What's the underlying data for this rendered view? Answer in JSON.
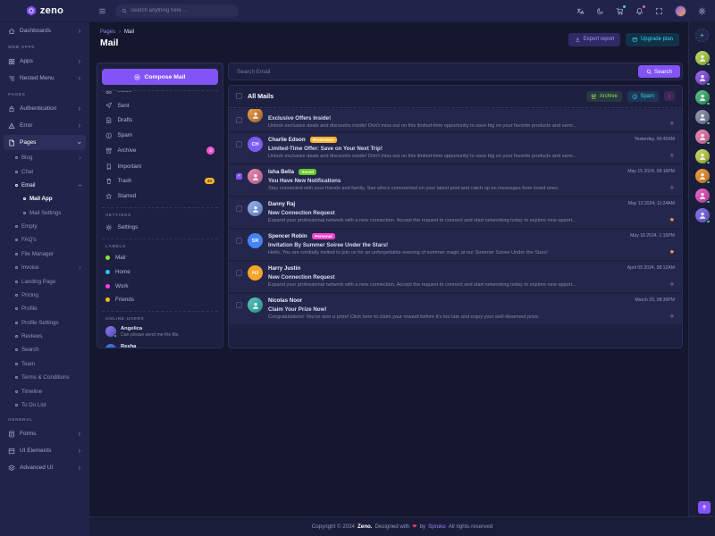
{
  "app": {
    "logo_text": "zeno"
  },
  "header": {
    "search_placeholder": "Search anything here ...",
    "icons": [
      {
        "name": "translate",
        "icon": "translate"
      },
      {
        "name": "dark-mode",
        "icon": "theme"
      },
      {
        "name": "cart",
        "icon": "cart",
        "dot": "#38d4f0"
      },
      {
        "name": "notifications",
        "icon": "bell",
        "dot": "#f354d5"
      },
      {
        "name": "fullscreen",
        "icon": "fullscreen"
      },
      {
        "name": "profile-avatar",
        "avatar": true
      },
      {
        "name": "switcher",
        "icon": "gear"
      }
    ]
  },
  "breadcrumb": {
    "section": "Pages",
    "separator": "›",
    "current": "Mail"
  },
  "page": {
    "title": "Mail",
    "export_label": "Export report",
    "upgrade_label": "Upgrade plan"
  },
  "sidebar": {
    "items": [
      {
        "t": "item",
        "label": "Dashboards",
        "icon": "home",
        "arrow": "right"
      },
      {
        "t": "sec",
        "label": "WEB APPS"
      },
      {
        "t": "item",
        "label": "Apps",
        "icon": "apps",
        "arrow": "right"
      },
      {
        "t": "item",
        "label": "Nested Menu",
        "icon": "nested",
        "arrow": "right"
      },
      {
        "t": "sec",
        "label": "PAGES"
      },
      {
        "t": "item",
        "label": "Authentication",
        "icon": "lock",
        "arrow": "right"
      },
      {
        "t": "item",
        "label": "Error",
        "icon": "warn",
        "arrow": "right"
      },
      {
        "t": "item",
        "label": "Pages",
        "icon": "pages",
        "arrow": "down",
        "active": true
      },
      {
        "t": "sub",
        "label": "Blog",
        "arrow": "right"
      },
      {
        "t": "sub",
        "label": "Chat"
      },
      {
        "t": "sub",
        "label": "Email",
        "arrow": "down",
        "open": true
      },
      {
        "t": "sub2",
        "label": "Mail App",
        "active": true
      },
      {
        "t": "sub2",
        "label": "Mail Settings"
      },
      {
        "t": "sub",
        "label": "Empty"
      },
      {
        "t": "sub",
        "label": "FAQ's"
      },
      {
        "t": "sub",
        "label": "File Manager"
      },
      {
        "t": "sub",
        "label": "Invoice",
        "arrow": "right"
      },
      {
        "t": "sub",
        "label": "Landing Page"
      },
      {
        "t": "sub",
        "label": "Pricing"
      },
      {
        "t": "sub",
        "label": "Profile"
      },
      {
        "t": "sub",
        "label": "Profile Settings"
      },
      {
        "t": "sub",
        "label": "Reviews"
      },
      {
        "t": "sub",
        "label": "Search"
      },
      {
        "t": "sub",
        "label": "Team"
      },
      {
        "t": "sub",
        "label": "Terms & Conditions"
      },
      {
        "t": "sub",
        "label": "Timeline"
      },
      {
        "t": "sub",
        "label": "To Do List"
      },
      {
        "t": "sec",
        "label": "GENERAL"
      },
      {
        "t": "item",
        "label": "Forms",
        "icon": "forms",
        "arrow": "right"
      },
      {
        "t": "item",
        "label": "UI Elements",
        "icon": "ui",
        "arrow": "right"
      },
      {
        "t": "item",
        "label": "Advanced UI",
        "icon": "advui",
        "arrow": "right"
      }
    ]
  },
  "mailnav": {
    "compose_label": "Compose Mail",
    "folders": [
      {
        "label": "Inbox",
        "icon": "inbox",
        "clipped": true
      },
      {
        "label": "Sent",
        "icon": "send"
      },
      {
        "label": "Drafts",
        "icon": "draft"
      },
      {
        "label": "Spam",
        "icon": "info"
      },
      {
        "label": "Archive",
        "icon": "archive",
        "badge": {
          "text": "3",
          "style": "pink"
        }
      },
      {
        "label": "Important",
        "icon": "bookmark"
      },
      {
        "label": "Trash",
        "icon": "trash",
        "badge": {
          "text": "43",
          "style": "orange"
        }
      },
      {
        "label": "Starred",
        "icon": "star"
      }
    ],
    "settings_header": "SETTINGS",
    "settings": [
      {
        "label": "Settings",
        "icon": "gear"
      }
    ],
    "labels_header": "LABELS",
    "labels": [
      {
        "name": "Mail",
        "color": "#8ce32a"
      },
      {
        "name": "Home",
        "color": "#26c6f9"
      },
      {
        "name": "Work",
        "color": "#f73ede"
      },
      {
        "name": "Friends",
        "color": "#fdb52a"
      }
    ],
    "online_header": "ONLINE USERS",
    "online_users": [
      {
        "name": "Angelica",
        "message": "Can please send me the file.",
        "grad": [
          "#8a7bf0",
          "#5a4bb0"
        ]
      },
      {
        "name": "Resha",
        "message": "Waiting for response 🙏.",
        "grad": [
          "#4584f5",
          "#2a4a90"
        ]
      }
    ]
  },
  "maillist": {
    "search_placeholder": "Search Email",
    "search_button": "Search",
    "header": "All Mails",
    "archive_label": "Archive",
    "spam_label": "Spam",
    "emails": [
      {
        "clipped": true,
        "name": "",
        "date": "",
        "subject": "Exclusive Offers Inside!",
        "preview": "Unlock exclusive deals and discounts inside! Don't miss out on this limited-time opportunity to save big on your favorite products and servi...",
        "starred": false,
        "checked": false,
        "avatar": {
          "kind": "photo",
          "grad": [
            "#f5a44a",
            "#9a5f2a"
          ]
        }
      },
      {
        "name": "Charlie Edson",
        "badge": {
          "text": "Promotion",
          "color": "#ffb32e"
        },
        "date": "Yesterday, 06:45AM",
        "subject": "Limited-Time Offer: Save on Your Next Trip!",
        "preview": "Unlock exclusive deals and discounts inside! Don't miss out on this limited-time opportunity to save big on your favorite products and servi...",
        "starred": false,
        "checked": false,
        "avatar": {
          "kind": "initials",
          "text": "CH",
          "color": "#7b5cf5"
        }
      },
      {
        "name": "Isha Bella",
        "badge": {
          "text": "Social",
          "color": "#63c821"
        },
        "date": "May 15 2024, 08:16PM",
        "subject": "You Have New Notifications",
        "preview": "Stay connected with your friends and family. See who's commented on your latest post and catch up on messages from loved ones.",
        "starred": false,
        "checked": true,
        "avatar": {
          "kind": "photo",
          "grad": [
            "#f08bb5",
            "#a85880"
          ]
        }
      },
      {
        "name": "Danny Raj",
        "date": "May 13 2024, 11:24AM",
        "subject": "New Connection Request",
        "preview": "Expand your professional network with a new connection. Accept the request to connect and start networking today to explore new opport...",
        "starred": true,
        "checked": false,
        "avatar": {
          "kind": "photo",
          "grad": [
            "#9ab5f0",
            "#5a76b0"
          ]
        }
      },
      {
        "name": "Spencer Robin",
        "badge": {
          "text": "Personal",
          "color": "#f542cb"
        },
        "date": "May 18 2024, 1:15PM",
        "subject": "Invitation By Summer Soiree Under the Stars!",
        "preview": "Hello, You are cordially invited to join us for an unforgettable evening of summer magic at our Summer Soiree Under the Stars!",
        "starred": true,
        "checked": false,
        "avatar": {
          "kind": "initials",
          "text": "SR",
          "color": "#4584f5"
        }
      },
      {
        "name": "Harry Justin",
        "date": "April 05 2024, 08:12AM",
        "subject": "New Connection Request",
        "preview": "Expand your professional network with a new connection. Accept the request to connect and start networking today to explore new opport...",
        "starred": false,
        "checked": false,
        "avatar": {
          "kind": "initials",
          "text": "HJ",
          "color": "#f5a52a"
        }
      },
      {
        "name": "Nicolas Noor",
        "date": "March 20, 08:30PM",
        "subject": "Claim Your Prize Now!",
        "preview": "Congratulations! You've won a prize! Click here to claim your reward before it's too late and enjoy your well-deserved prize.",
        "starred": false,
        "checked": false,
        "avatar": {
          "kind": "photo",
          "grad": [
            "#5bc9c0",
            "#2a8a85"
          ]
        }
      }
    ]
  },
  "rail": {
    "avatars": [
      {
        "grad": [
          "#c8e06b",
          "#7a9a2a"
        ]
      },
      {
        "grad": [
          "#a06bf5",
          "#5c35a8"
        ]
      },
      {
        "grad": [
          "#5bc98a",
          "#2a7a50"
        ]
      },
      {
        "grad": [
          "#9aa0b8",
          "#5a6075"
        ]
      },
      {
        "grad": [
          "#f08bb5",
          "#b05880"
        ]
      },
      {
        "grad": [
          "#cfe06b",
          "#8a9a2a"
        ]
      },
      {
        "grad": [
          "#f5a44a",
          "#b06a1a"
        ]
      },
      {
        "grad": [
          "#ef6bd0",
          "#a8358c"
        ]
      },
      {
        "grad": [
          "#8a7bf0",
          "#5a4bb0"
        ]
      }
    ]
  },
  "footer": {
    "pre": "Copyright © 2024",
    "brand": "Zeno.",
    "mid": "Designed with",
    "heart": "❤",
    "by": "by",
    "author": "Spruko",
    "post": "All rights reserved"
  },
  "colors": {
    "accent_purple": "#8254f8",
    "accent_cyan": "#2fd6ec",
    "accent_green": "#8ce05c",
    "accent_pink": "#f354d5",
    "accent_orange": "#ffb32e"
  }
}
